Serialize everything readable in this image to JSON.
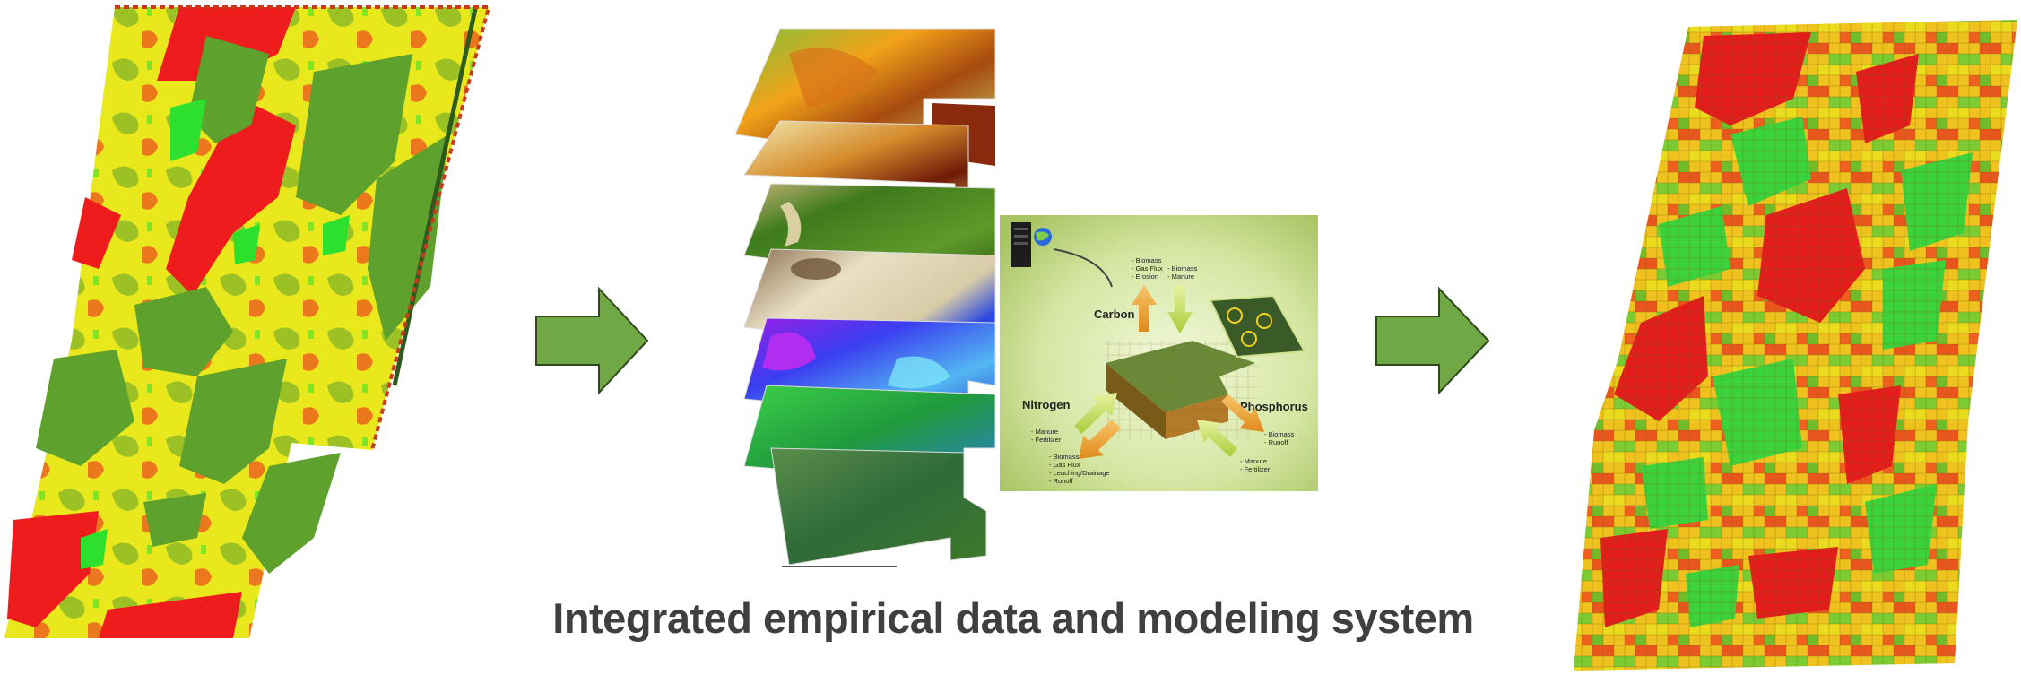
{
  "caption": "Integrated empirical data and modeling system",
  "model_panel": {
    "cycles": [
      {
        "name": "Carbon",
        "out_items": [
          "- Biomass",
          "- Gas Flux",
          "- Erosion"
        ],
        "in_items": [
          "- Biomass",
          "- Manure"
        ]
      },
      {
        "name": "Nitrogen",
        "in_items": [
          "- Manure",
          "- Fertilizer"
        ],
        "out_items": [
          "- Biomass",
          "- Gas Flux",
          "- Leaching/Drainage",
          "- Runoff"
        ]
      },
      {
        "name": "Phosphorus",
        "out_items": [
          "- Biomass",
          "- Runoff"
        ],
        "in_items": [
          "- Manure",
          "- Fertilizer"
        ]
      }
    ]
  },
  "colors": {
    "arrow_fill": "#70a845",
    "arrow_stroke": "#2e4a1a",
    "map_high": "#ee1c1c",
    "map_mid": "#5ea12c",
    "map_low": "#e8e81c",
    "map_bright": "#2de02d",
    "panel_bg": "#d5e6a3",
    "caption_text": "#3f3f3f"
  },
  "icons": [
    "server-icon",
    "globe-icon",
    "flow-arrow-icon"
  ]
}
